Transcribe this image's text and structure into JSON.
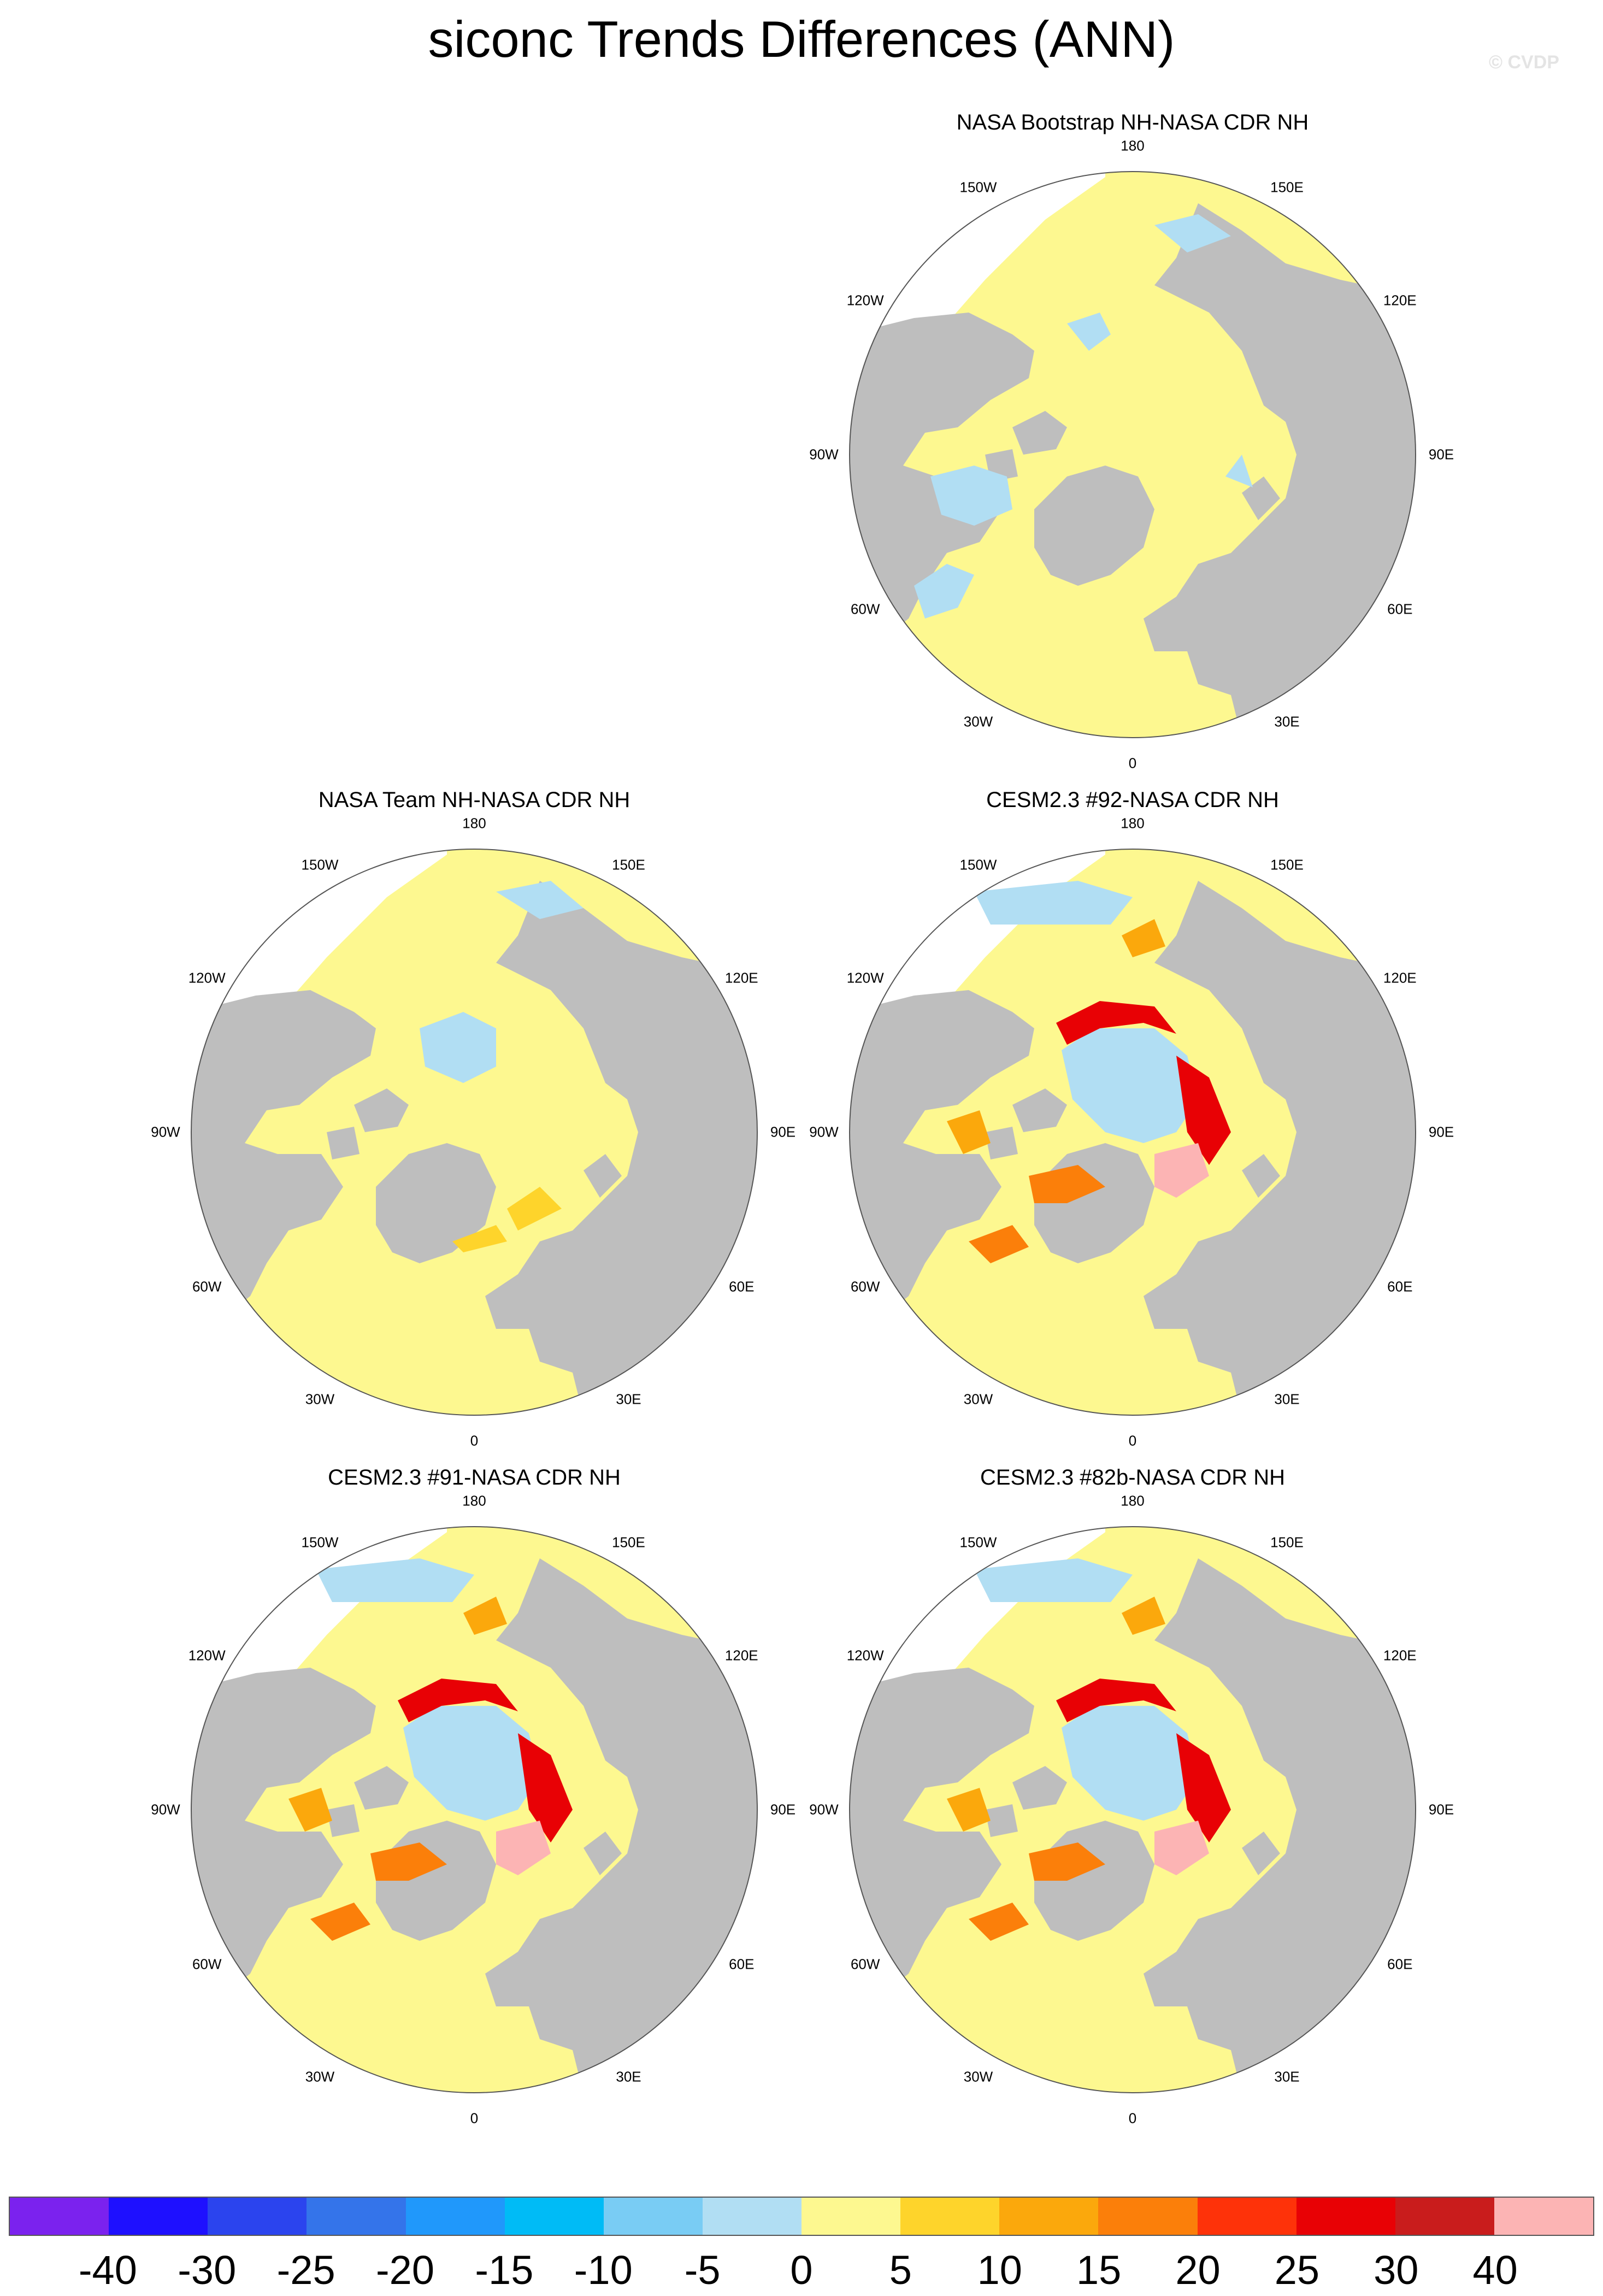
{
  "title": "siconc Trends Differences (ANN)",
  "watermark": "© CVDP",
  "lon_labels": [
    "180",
    "150E",
    "120E",
    "90E",
    "60E",
    "30E",
    "0",
    "30W",
    "60W",
    "90W",
    "120W",
    "150W"
  ],
  "panels": [
    {
      "id": "p1",
      "title": "NASA Bootstrap NH-NASA CDR NH",
      "style": "bootstrap"
    },
    {
      "id": "p2",
      "title": "NASA Team NH-NASA CDR NH",
      "style": "team"
    },
    {
      "id": "p3",
      "title": "CESM2.3 #92-NASA CDR NH",
      "style": "cesm"
    },
    {
      "id": "p4",
      "title": "CESM2.3 #91-NASA CDR NH",
      "style": "cesm"
    },
    {
      "id": "p5",
      "title": "CESM2.3 #82b-NASA CDR NH",
      "style": "cesm"
    }
  ],
  "colorbar": {
    "labels": [
      "-40",
      "-30",
      "-25",
      "-20",
      "-15",
      "-10",
      "-5",
      "0",
      "5",
      "10",
      "15",
      "20",
      "25",
      "30",
      "40"
    ],
    "colors": [
      "#7b22ee",
      "#1e10ff",
      "#2b44ee",
      "#3474ea",
      "#2098fb",
      "#00bbf6",
      "#79ccf4",
      "#b1def3",
      "#fdf890",
      "#fed42b",
      "#fba80c",
      "#fb7f0a",
      "#fe3209",
      "#e80105",
      "#c91c1c",
      "#fcb4b4"
    ]
  },
  "colors": {
    "land": "#bebebe",
    "pos_small": "#fdf890",
    "neg_small": "#b1def3"
  }
}
